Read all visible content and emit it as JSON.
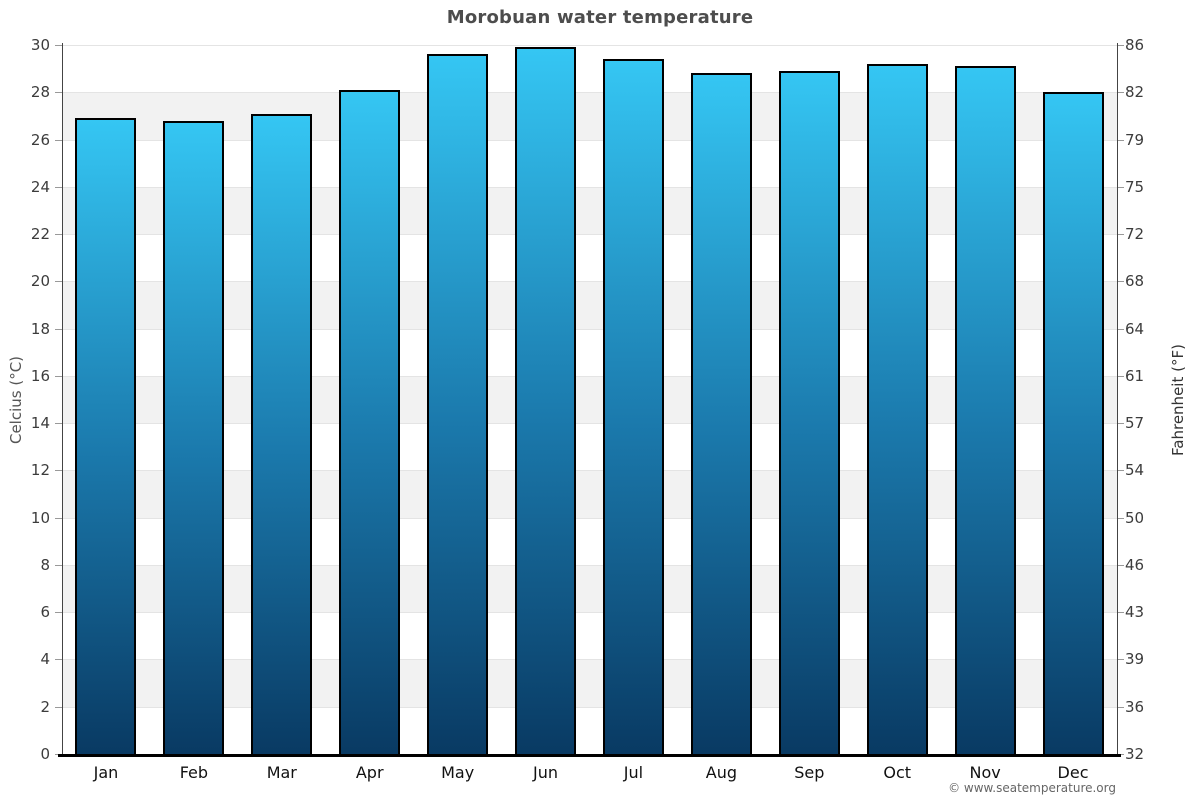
{
  "title": "Morobuan water temperature",
  "footer": {
    "attribution": "© www.seatemperature.org"
  },
  "chart_data": {
    "type": "bar",
    "title": "Morobuan water temperature",
    "categories": [
      "Jan",
      "Feb",
      "Mar",
      "Apr",
      "May",
      "Jun",
      "Jul",
      "Aug",
      "Sep",
      "Oct",
      "Nov",
      "Dec"
    ],
    "series": [
      {
        "name": "Water temperature (°C)",
        "values": [
          26.9,
          26.8,
          27.1,
          28.1,
          29.6,
          29.9,
          29.4,
          28.8,
          28.9,
          29.2,
          29.1,
          28.0
        ]
      }
    ],
    "xlabel": "",
    "ylabel_left": "Celcius (°C)",
    "ylabel_right": "Fahrenheit (°F)",
    "ylim_left": [
      0,
      30
    ],
    "yticks_left": [
      30,
      28,
      26,
      24,
      22,
      20,
      18,
      16,
      14,
      12,
      10,
      8,
      6,
      4,
      2,
      0
    ],
    "yticks_right_labels": [
      "86",
      "82",
      "79",
      "75",
      "72",
      "68",
      "64",
      "61",
      "57",
      "54",
      "50",
      "46",
      "43",
      "39",
      "36",
      "32"
    ],
    "grid": "horizontal gridlines every 2°C with alternating gray bands",
    "legend_position": "none",
    "colors": {
      "bar_gradient_top": "#35c6f3",
      "bar_gradient_mid": "#1b7aad",
      "bar_gradient_bottom": "#093a63",
      "bar_border": "#000000",
      "band": "#f2f2f2",
      "gridline": "#e4e4e4",
      "axis_line": "#444444",
      "baseline": "#000000",
      "tick_mark": "#999999",
      "title": "#4d4d4d",
      "tick_label": "#3c3c3c",
      "month_label": "#111111",
      "footer": "#666666"
    }
  }
}
